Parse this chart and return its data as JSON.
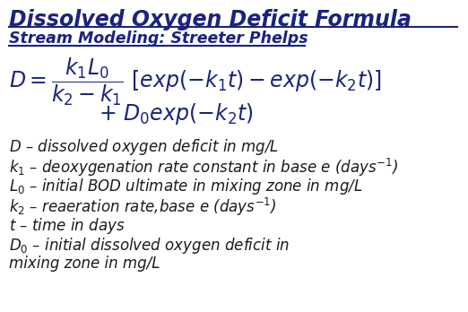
{
  "title": "Dissolved Oxygen Deficit Formula",
  "subtitle": "Stream Modeling: Streeter Phelps",
  "title_color": "#1a237e",
  "background_color": "#ffffff",
  "desc_color": "#1a1a1a",
  "title_fontsize": 17,
  "subtitle_fontsize": 12.5,
  "formula_fontsize": 17,
  "desc_fontsize": 12
}
